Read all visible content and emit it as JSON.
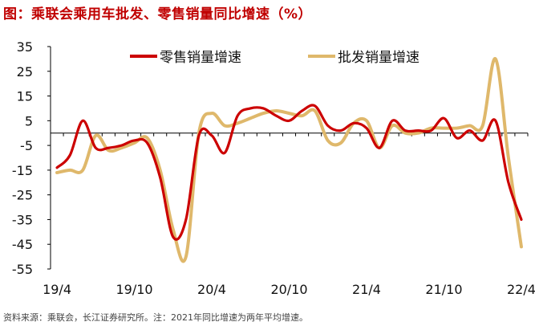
{
  "title": "图：乘联会乘用车批发、零售销量同比增速（%）",
  "source_note": "资料来源：乘联会，长江证券研究所。注：2021年同比增速为两年平均增速。",
  "colors": {
    "retail": "#cc0000",
    "wholesale": "#dfb86b",
    "title": "#c00000"
  },
  "chart_data": {
    "type": "line",
    "x": [
      "19/4",
      "19/5",
      "19/6",
      "19/7",
      "19/8",
      "19/9",
      "19/10",
      "19/11",
      "19/12",
      "20/1",
      "20/2",
      "20/3",
      "20/4",
      "20/5",
      "20/6",
      "20/7",
      "20/8",
      "20/9",
      "20/10",
      "20/11",
      "20/12",
      "21/1",
      "21/2",
      "21/3",
      "21/4",
      "21/5",
      "21/6",
      "21/7",
      "21/8",
      "21/9",
      "21/10",
      "21/11",
      "21/12",
      "22/1",
      "22/2",
      "22/3",
      "22/4"
    ],
    "x_tick_labels": [
      "19/4",
      "19/10",
      "20/4",
      "20/10",
      "21/4",
      "21/10",
      "22/4"
    ],
    "ylim": [
      -55,
      35
    ],
    "y_ticks": [
      35,
      25,
      15,
      5,
      -5,
      -15,
      -25,
      -35,
      -45,
      -55
    ],
    "legend_position": "top",
    "series": [
      {
        "name": "零售销量增速",
        "values": [
          -14,
          -9,
          5,
          -6,
          -6,
          -5,
          -3,
          -4,
          -18,
          -42,
          -35,
          -1,
          -1,
          -8,
          7,
          10,
          10,
          7,
          5,
          9,
          11,
          3,
          1,
          4,
          2,
          -6,
          5,
          1,
          1,
          1,
          6,
          -2,
          1,
          -3,
          5,
          -20,
          -35
        ]
      },
      {
        "name": "批发销量增速",
        "values": [
          -16,
          -15,
          -15,
          -1,
          -7,
          -6,
          -4,
          -2,
          -15,
          -39,
          -50,
          0,
          8,
          3,
          4,
          6,
          8,
          9,
          8,
          7,
          9,
          -3,
          -4,
          4,
          5,
          -6,
          3,
          0,
          0,
          2,
          2,
          2,
          3,
          3,
          30,
          -10,
          -46
        ]
      }
    ]
  }
}
